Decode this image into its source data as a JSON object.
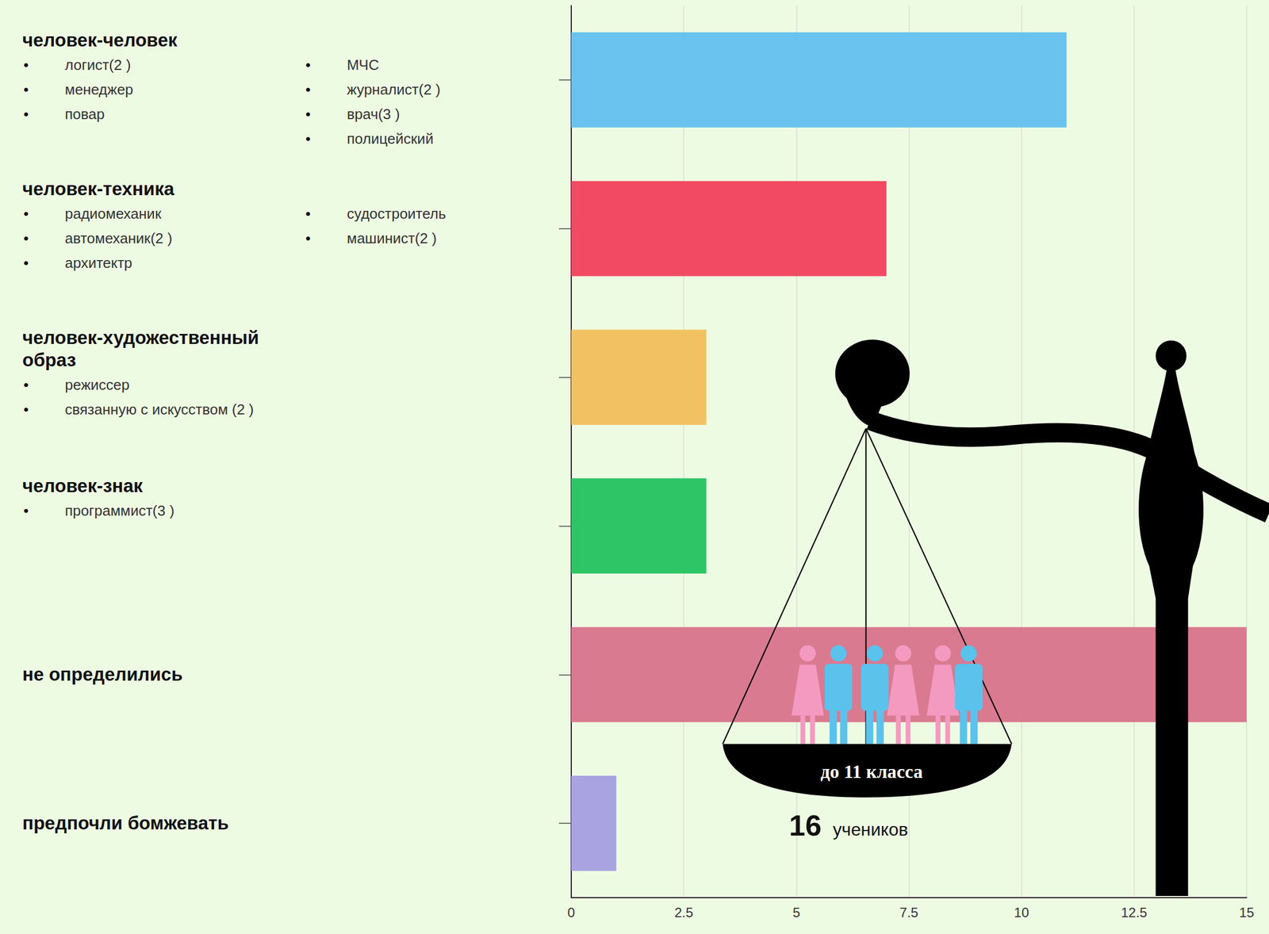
{
  "chart_data": {
    "type": "bar",
    "orientation": "horizontal",
    "categories": [
      "человек-человек",
      "человек-техника",
      "человек-художественный образ",
      "человек-знак",
      "не определились",
      "предпочли бомжевать"
    ],
    "category_items": [
      [
        [
          "логист(2 )",
          "менеджер",
          "повар"
        ],
        [
          "МЧС",
          "журналист(2 )",
          "врач(3 )",
          "полицейский"
        ]
      ],
      [
        [
          "радиомеханик",
          "автомеханик(2 )",
          "архитектр"
        ],
        [
          "судостроитель",
          "машинист(2 )"
        ]
      ],
      [
        [
          "режиссер",
          "связанную с искусством (2 )"
        ]
      ],
      [
        [
          "программист(3 )"
        ]
      ],
      [],
      []
    ],
    "values": [
      11,
      7,
      3,
      3,
      15,
      1
    ],
    "colors": [
      "#6ac3ee",
      "#f24a63",
      "#f2c262",
      "#2dc565",
      "#d97a90",
      "#a9a3e2"
    ],
    "xlim": [
      0,
      15
    ],
    "xticks": [
      0,
      2.5,
      5,
      7.5,
      10,
      12.5,
      15
    ],
    "grid": true,
    "annotations": {
      "plate": "до 11 класса",
      "count": 16,
      "count_label": "учеников"
    }
  }
}
